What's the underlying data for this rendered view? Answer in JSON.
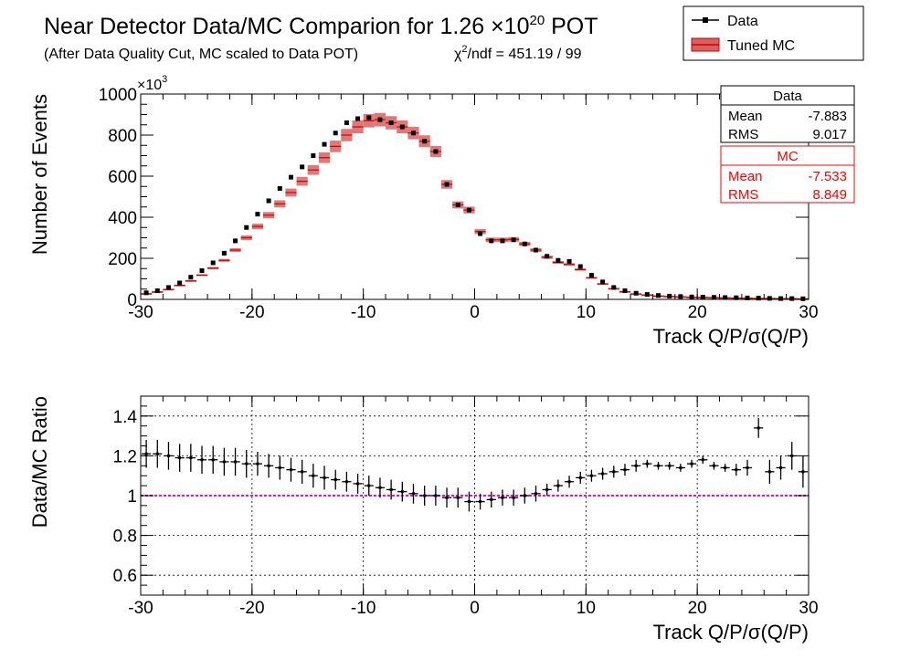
{
  "header": {
    "title": "Near Detector Data/MC Comparion for 1.26 ×10",
    "title_exp": "20",
    "title_tail": " POT",
    "subtitle": "(After Data Quality Cut, MC scaled to Data POT)",
    "chi2_prefix": "χ",
    "chi2_exp": "2",
    "chi2_text": "/ndf = 451.19 / 99"
  },
  "legend": {
    "placement": "top-right",
    "entries": [
      {
        "label": "Data",
        "color": "#000000",
        "style": "marker-line"
      },
      {
        "label": "Tuned MC",
        "color": "#cc0000",
        "style": "band"
      }
    ]
  },
  "stats": {
    "data": {
      "title": "Data",
      "mean_label": "Mean",
      "mean": "-7.883",
      "rms_label": "RMS",
      "rms": "9.017",
      "color": "#000000"
    },
    "mc": {
      "title": "MC",
      "mean_label": "Mean",
      "mean": "-7.533",
      "rms_label": "RMS",
      "rms": "8.849",
      "color": "#ff0000"
    }
  },
  "chart_data": [
    {
      "type": "scatter",
      "panel": "top",
      "xlabel": "Track Q/P/σ(Q/P)",
      "ylabel": "Number of Events",
      "y_multiplier": "×10",
      "y_multiplier_exp": "3",
      "xlim": [
        -30,
        30
      ],
      "ylim": [
        0,
        1000
      ],
      "xticks": [
        "-30",
        "-20",
        "-10",
        "0",
        "10",
        "20",
        "30"
      ],
      "yticks": [
        "0",
        "200",
        "400",
        "600",
        "800",
        "1000"
      ],
      "grid": false,
      "x": [
        -29.5,
        -28.5,
        -27.5,
        -26.5,
        -25.5,
        -24.5,
        -23.5,
        -22.5,
        -21.5,
        -20.5,
        -19.5,
        -18.5,
        -17.5,
        -16.5,
        -15.5,
        -14.5,
        -13.5,
        -12.5,
        -11.5,
        -10.5,
        -9.5,
        -8.5,
        -7.5,
        -6.5,
        -5.5,
        -4.5,
        -3.5,
        -2.5,
        -1.5,
        -0.5,
        0.5,
        1.5,
        2.5,
        3.5,
        4.5,
        5.5,
        6.5,
        7.5,
        8.5,
        9.5,
        10.5,
        11.5,
        12.5,
        13.5,
        14.5,
        15.5,
        16.5,
        17.5,
        18.5,
        19.5,
        20.5,
        21.5,
        22.5,
        23.5,
        24.5,
        25.5,
        26.5,
        27.5,
        28.5,
        29.5
      ],
      "series": [
        {
          "name": "Data",
          "color": "#000000",
          "values": [
            32,
            42,
            58,
            80,
            108,
            140,
            178,
            225,
            285,
            350,
            415,
            480,
            540,
            595,
            645,
            700,
            755,
            810,
            860,
            880,
            885,
            875,
            860,
            840,
            810,
            770,
            720,
            560,
            460,
            435,
            320,
            285,
            285,
            290,
            270,
            240,
            210,
            190,
            185,
            160,
            118,
            85,
            58,
            42,
            30,
            24,
            19,
            16,
            14,
            12,
            11,
            10,
            9,
            8,
            7,
            6,
            5,
            4,
            4,
            3
          ]
        },
        {
          "name": "Tuned MC",
          "color": "#cc0000",
          "band_half_width": 30,
          "values": [
            27,
            36,
            48,
            68,
            90,
            118,
            152,
            190,
            240,
            300,
            355,
            410,
            465,
            520,
            575,
            630,
            690,
            745,
            800,
            840,
            870,
            875,
            860,
            840,
            810,
            770,
            720,
            560,
            460,
            435,
            330,
            290,
            290,
            292,
            270,
            240,
            205,
            180,
            170,
            145,
            105,
            75,
            52,
            37,
            26,
            21,
            16,
            14,
            12,
            10,
            9,
            8,
            7,
            6,
            5,
            4,
            4,
            3,
            3,
            2
          ]
        }
      ]
    },
    {
      "type": "scatter",
      "panel": "bottom",
      "xlabel": "Track Q/P/σ(Q/P)",
      "ylabel": "Data/MC Ratio",
      "xlim": [
        -30,
        30
      ],
      "ylim": [
        0.5,
        1.5
      ],
      "xticks": [
        "-30",
        "-20",
        "-10",
        "0",
        "10",
        "20",
        "30"
      ],
      "yticks": [
        "0.6",
        "0.8",
        "1",
        "1.2",
        "1.4"
      ],
      "grid": true,
      "reference_line": {
        "value": 1,
        "color": "#ff00ff"
      },
      "x": [
        -29.5,
        -28.5,
        -27.5,
        -26.5,
        -25.5,
        -24.5,
        -23.5,
        -22.5,
        -21.5,
        -20.5,
        -19.5,
        -18.5,
        -17.5,
        -16.5,
        -15.5,
        -14.5,
        -13.5,
        -12.5,
        -11.5,
        -10.5,
        -9.5,
        -8.5,
        -7.5,
        -6.5,
        -5.5,
        -4.5,
        -3.5,
        -2.5,
        -1.5,
        -0.5,
        0.5,
        1.5,
        2.5,
        3.5,
        4.5,
        5.5,
        6.5,
        7.5,
        8.5,
        9.5,
        10.5,
        11.5,
        12.5,
        13.5,
        14.5,
        15.5,
        16.5,
        17.5,
        18.5,
        19.5,
        20.5,
        21.5,
        22.5,
        23.5,
        24.5,
        25.5,
        26.5,
        27.5,
        28.5,
        29.5
      ],
      "values": [
        1.21,
        1.21,
        1.2,
        1.19,
        1.19,
        1.18,
        1.18,
        1.17,
        1.17,
        1.16,
        1.16,
        1.15,
        1.14,
        1.13,
        1.12,
        1.1,
        1.09,
        1.08,
        1.07,
        1.06,
        1.05,
        1.04,
        1.03,
        1.02,
        1.01,
        1.0,
        1.0,
        0.99,
        0.99,
        0.97,
        0.97,
        0.98,
        0.99,
        0.99,
        1.0,
        1.01,
        1.03,
        1.05,
        1.07,
        1.09,
        1.1,
        1.11,
        1.12,
        1.13,
        1.15,
        1.16,
        1.15,
        1.15,
        1.14,
        1.16,
        1.18,
        1.15,
        1.14,
        1.13,
        1.14,
        1.34,
        1.12,
        1.14,
        1.2,
        1.12
      ],
      "errors": [
        0.07,
        0.07,
        0.07,
        0.07,
        0.07,
        0.07,
        0.07,
        0.07,
        0.07,
        0.07,
        0.06,
        0.06,
        0.06,
        0.06,
        0.06,
        0.06,
        0.06,
        0.05,
        0.05,
        0.05,
        0.05,
        0.05,
        0.05,
        0.05,
        0.05,
        0.05,
        0.05,
        0.05,
        0.05,
        0.05,
        0.04,
        0.04,
        0.04,
        0.04,
        0.04,
        0.04,
        0.03,
        0.03,
        0.03,
        0.03,
        0.03,
        0.03,
        0.03,
        0.03,
        0.03,
        0.02,
        0.02,
        0.02,
        0.02,
        0.02,
        0.02,
        0.02,
        0.02,
        0.03,
        0.04,
        0.05,
        0.06,
        0.06,
        0.07,
        0.08
      ]
    }
  ]
}
